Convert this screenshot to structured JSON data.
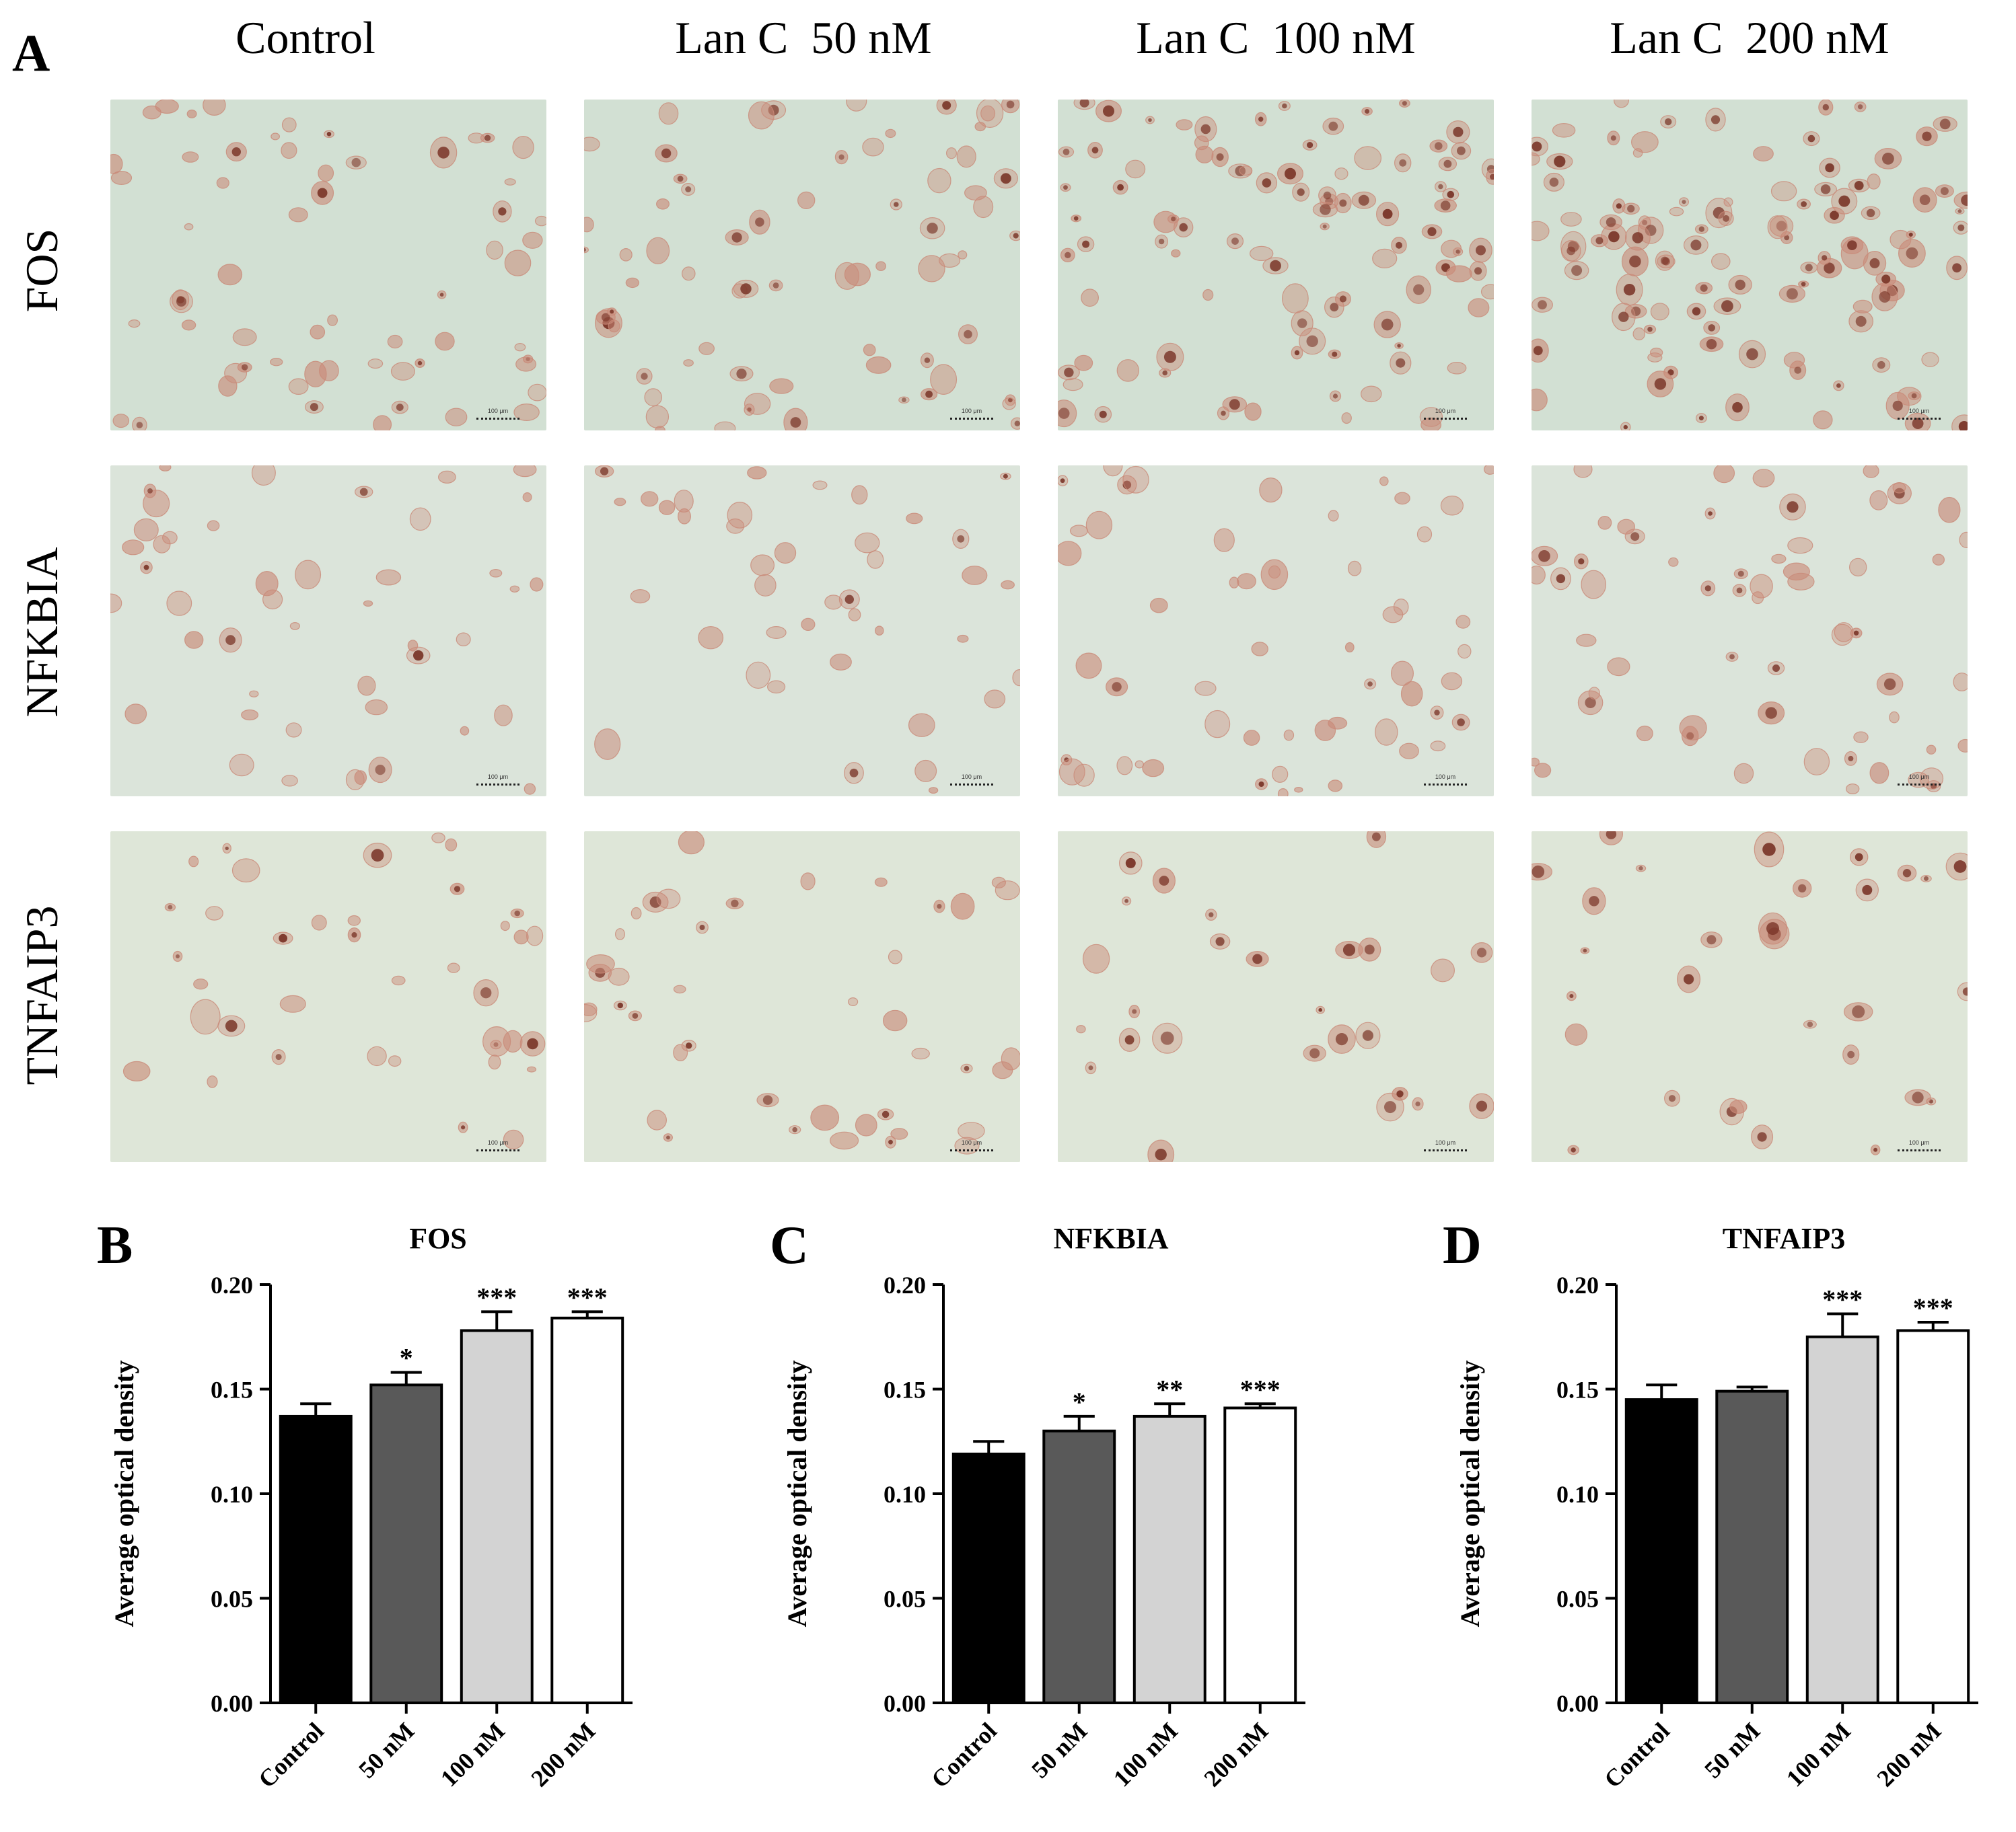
{
  "panelA": {
    "letter": "A",
    "columns": [
      "Control",
      "Lan C  50 nM",
      "Lan C  100 nM",
      "Lan C  200 nM"
    ],
    "rows": [
      "FOS",
      "NFKBIA",
      "TNFAIP3"
    ],
    "scale_bar": "100 μm",
    "colors": {
      "background_fos": "#d2e0d3",
      "background_nfkbia": "#dbe4da",
      "background_tnfaip3": "#dee6d8",
      "cell_stain": "#c98a78",
      "nucleus_stain": "#7a3528"
    }
  },
  "chart_data": [
    {
      "letter": "B",
      "type": "bar",
      "title": "FOS",
      "ylabel": "Average optical density",
      "xlabel": "",
      "categories": [
        "Control",
        "50 nM",
        "100 nM",
        "200 nM"
      ],
      "values": [
        0.137,
        0.152,
        0.178,
        0.184
      ],
      "errors": [
        0.006,
        0.006,
        0.009,
        0.003
      ],
      "significance": [
        "",
        "*",
        "***",
        "***"
      ],
      "ylim": [
        0,
        0.2
      ],
      "yticks": [
        "0.00",
        "0.05",
        "0.10",
        "0.15",
        "0.20"
      ],
      "bar_colors": [
        "#000000",
        "#595959",
        "#d3d3d3",
        "#ffffff"
      ],
      "grid": false
    },
    {
      "letter": "C",
      "type": "bar",
      "title": "NFKBIA",
      "ylabel": "Average optical density",
      "xlabel": "",
      "categories": [
        "Control",
        "50 nM",
        "100 nM",
        "200 nM"
      ],
      "values": [
        0.119,
        0.13,
        0.137,
        0.141
      ],
      "errors": [
        0.006,
        0.007,
        0.006,
        0.002
      ],
      "significance": [
        "",
        "*",
        "**",
        "***"
      ],
      "ylim": [
        0,
        0.2
      ],
      "yticks": [
        "0.00",
        "0.05",
        "0.10",
        "0.15",
        "0.20"
      ],
      "bar_colors": [
        "#000000",
        "#595959",
        "#d3d3d3",
        "#ffffff"
      ],
      "grid": false
    },
    {
      "letter": "D",
      "type": "bar",
      "title": "TNFAIP3",
      "ylabel": "Average optical density",
      "xlabel": "",
      "categories": [
        "Control",
        "50 nM",
        "100 nM",
        "200 nM"
      ],
      "values": [
        0.145,
        0.149,
        0.175,
        0.178
      ],
      "errors": [
        0.007,
        0.002,
        0.011,
        0.004
      ],
      "significance": [
        "",
        "",
        "***",
        "***"
      ],
      "ylim": [
        0,
        0.2
      ],
      "yticks": [
        "0.00",
        "0.05",
        "0.10",
        "0.15",
        "0.20"
      ],
      "bar_colors": [
        "#000000",
        "#595959",
        "#d3d3d3",
        "#ffffff"
      ],
      "grid": false
    }
  ]
}
